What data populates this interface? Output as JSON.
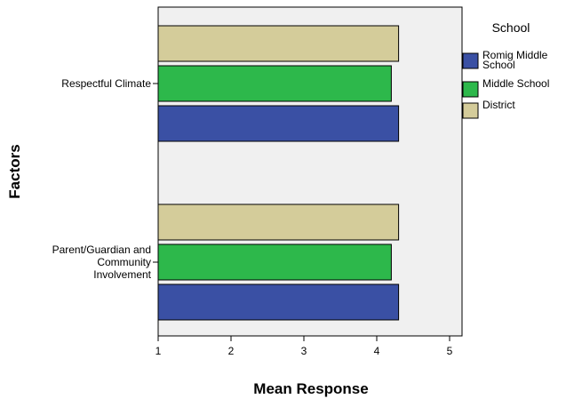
{
  "chart_data": {
    "type": "bar",
    "orientation": "horizontal",
    "categories": [
      "Respectful Climate",
      "Parent/Guardian and Community Involvement"
    ],
    "category_label_lines": [
      [
        "Respectful Climate"
      ],
      [
        "Parent/Guardian and",
        "Community",
        "Involvement"
      ]
    ],
    "series": [
      {
        "name": "District",
        "values": [
          4.3,
          4.3
        ],
        "color": "#d4cc9a"
      },
      {
        "name": "Middle School",
        "values": [
          4.2,
          4.2
        ],
        "color": "#2db84b"
      },
      {
        "name": "Romig Middle School",
        "values": [
          4.3,
          4.3
        ],
        "color": "#3a50a4"
      }
    ],
    "xlabel": "Mean Response",
    "ylabel": "Factors",
    "xlim": [
      1,
      5.2
    ],
    "xticks": [
      1,
      2,
      3,
      4,
      5
    ],
    "grid": false,
    "plot_background": "#f0f0f0",
    "legend": {
      "title": "School",
      "placement": "right",
      "entries": [
        {
          "name": "Romig Middle School",
          "lines": [
            "Romig Middle",
            "School"
          ],
          "color": "#3a50a4"
        },
        {
          "name": "Middle School",
          "lines": [
            "Middle School"
          ],
          "color": "#2db84b"
        },
        {
          "name": "District",
          "lines": [
            "District"
          ],
          "color": "#d4cc9a"
        }
      ]
    }
  }
}
